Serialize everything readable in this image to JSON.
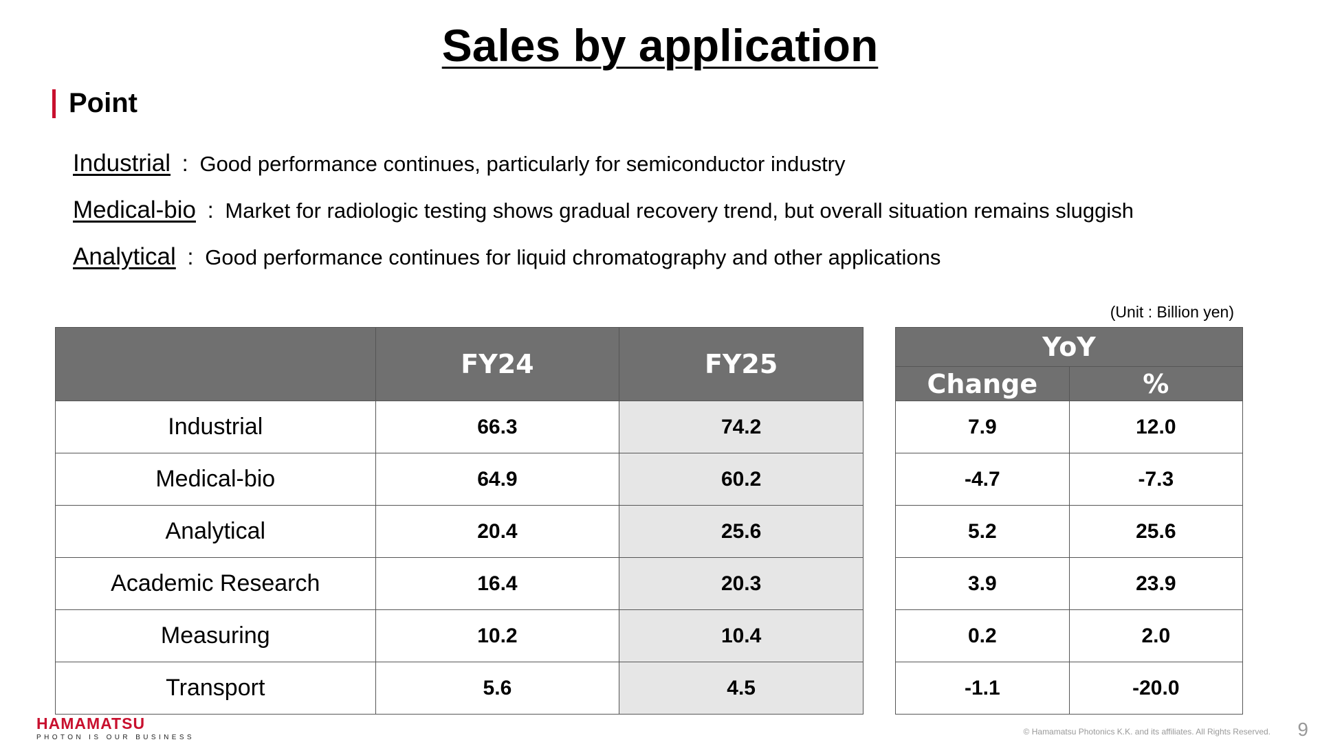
{
  "title": "Sales by application",
  "point_heading": "Point",
  "points": [
    {
      "term": "Industrial",
      "sep": ":",
      "text": "Good performance continues, particularly for semiconductor industry"
    },
    {
      "term": "Medical-bio",
      "sep": ":",
      "text": "Market for radiologic testing shows gradual recovery trend, but overall situation remains sluggish"
    },
    {
      "term": "Analytical",
      "sep": ":",
      "text": "Good performance continues for liquid chromatography and other applications"
    }
  ],
  "unit_label": "(Unit : Billion yen)",
  "table": {
    "headers": {
      "category": "",
      "fy24": "FY24",
      "fy25": "FY25"
    },
    "rows": [
      {
        "category": "Industrial",
        "fy24": "66.3",
        "fy25": "74.2"
      },
      {
        "category": "Medical-bio",
        "fy24": "64.9",
        "fy25": "60.2"
      },
      {
        "category": "Analytical",
        "fy24": "20.4",
        "fy25": "25.6"
      },
      {
        "category": "Academic Research",
        "fy24": "16.4",
        "fy25": "20.3"
      },
      {
        "category": "Measuring",
        "fy24": "10.2",
        "fy25": "10.4"
      },
      {
        "category": "Transport",
        "fy24": "5.6",
        "fy25": "4.5"
      }
    ]
  },
  "yoy": {
    "header": "YoY",
    "subheaders": {
      "change": "Change",
      "pct": "%"
    },
    "rows": [
      {
        "change": "7.9",
        "pct": "12.0"
      },
      {
        "change": "-4.7",
        "pct": "-7.3"
      },
      {
        "change": "5.2",
        "pct": "25.6"
      },
      {
        "change": "3.9",
        "pct": "23.9"
      },
      {
        "change": "0.2",
        "pct": "2.0"
      },
      {
        "change": "-1.1",
        "pct": "-20.0"
      }
    ]
  },
  "footer": {
    "brand": "HAMAMATSU",
    "tagline": "PHOTON IS OUR BUSINESS",
    "copyright": "© Hamamatsu Photonics K.K. and its affiliates. All Rights Reserved.",
    "page_number": "9"
  },
  "colors": {
    "accent": "#c8102e",
    "header_bg": "#707070",
    "fy25_bg": "#e6e6e6"
  }
}
